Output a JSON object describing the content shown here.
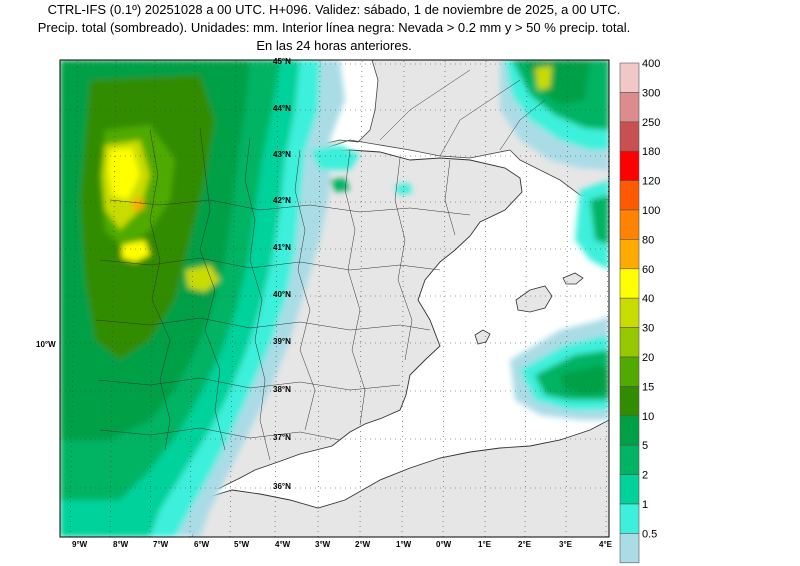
{
  "header": {
    "line1": "CTRL-IFS (0.1º) 20251028 a 00 UTC. H+096. Validez: sábado, 1 de noviembre de 2025, a 00 UTC.",
    "line2": "Precip. total (sombreado). Unidades: mm. Interior línea negra: Nevada > 0.2 mm y > 50 % precip. total.",
    "line3": "En las 24 horas anteriores."
  },
  "map": {
    "lat_labels": [
      "45°N",
      "44°N",
      "43°N",
      "42°N",
      "41°N",
      "40°N",
      "39°N",
      "38°N",
      "37°N",
      "36°N"
    ],
    "lon_labels": [
      "9°W",
      "8°W",
      "7°W",
      "6°W",
      "5°W",
      "4°W",
      "3°W",
      "2°W",
      "1°W",
      "0°W",
      "1°E",
      "2°E",
      "3°E",
      "4°E"
    ],
    "left_label": "10°W",
    "colors": {
      "land_dry": "#e6e6e6",
      "sea": "#ffffff"
    }
  },
  "colorbar": {
    "labels": [
      "400",
      "300",
      "250",
      "180",
      "120",
      "100",
      "80",
      "60",
      "40",
      "30",
      "20",
      "15",
      "10",
      "5",
      "2",
      "1",
      "0.5"
    ],
    "colors": [
      "#f0c8c8",
      "#dc8c8c",
      "#c85050",
      "#ff0000",
      "#ff5a00",
      "#ff8200",
      "#ffaa00",
      "#ffff00",
      "#c8dc00",
      "#96c800",
      "#50aa00",
      "#328c00",
      "#00a046",
      "#00b464",
      "#00d29b",
      "#3cf0dc",
      "#aadce6"
    ]
  }
}
